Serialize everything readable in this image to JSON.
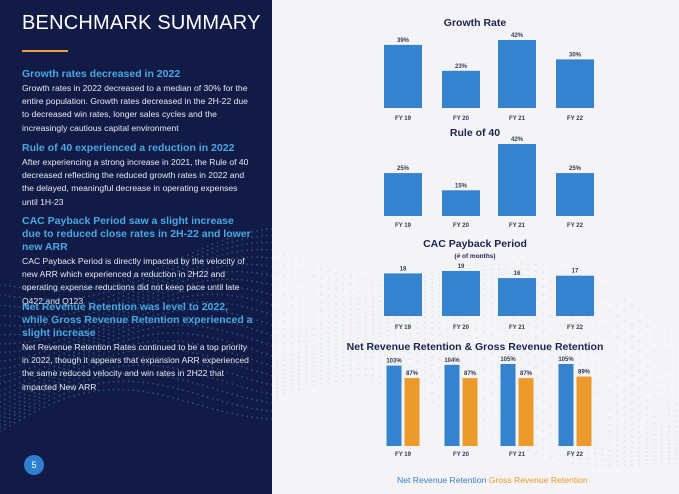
{
  "page": {
    "title": "BENCHMARK SUMMARY",
    "page_number": "5",
    "sections": [
      {
        "heading": "Growth rates decreased in 2022",
        "body": "Growth rates in 2022 decreased to a median of 30% for the entire population. Growth rates decreased in the 2H-22 due to decreased win rates, longer sales cycles and the increasingly cautious capital environment"
      },
      {
        "heading": "Rule of 40 experienced a reduction in 2022",
        "body": "After experiencing a strong increase in 2021, the Rule of 40 decreased reflecting the reduced growth rates in 2022 and the delayed, meaningful decrease in operating expenses until 1H-23"
      },
      {
        "heading": "CAC Payback Period saw a slight increase due to reduced close rates in 2H-22 and lower new ARR",
        "body": "CAC Payback Period is directly impacted by the velocity of new ARR which experienced a reduction in 2H22 and operating expense reductions did not keep pace until late Q422 and Q123"
      },
      {
        "heading": "Net Revenue Retention was level to 2022, while Gross Revenue Retention experienced a slight increase",
        "body": "Net Revenue Retention Rates continued to be a top priority in 2022, though it appears that expansion ARR experienced the same reduced velocity and win rates in 2H22 that impacted New ARR"
      }
    ]
  },
  "colors": {
    "left_bg": "#111b45",
    "accent_blue": "#3582cf",
    "accent_orange": "#ec9a2b",
    "heading_blue": "#49a8e4",
    "title_rule": "#e9a23b"
  },
  "chart_data": [
    {
      "type": "bar",
      "title": "Growth Rate",
      "subtitle": "",
      "categories": [
        "FY 19",
        "FY 20",
        "FY 21",
        "FY 22"
      ],
      "series": [
        {
          "values": [
            39,
            23,
            42,
            30
          ],
          "labels": [
            "39%",
            "23%",
            "42%",
            "30%"
          ]
        }
      ],
      "ylim": [
        0,
        42
      ]
    },
    {
      "type": "bar",
      "title": "Rule of 40",
      "subtitle": "",
      "categories": [
        "FY 19",
        "FY 20",
        "FY 21",
        "FY 22"
      ],
      "series": [
        {
          "values": [
            25,
            15,
            42,
            25
          ],
          "labels": [
            "25%",
            "15%",
            "42%",
            "25%"
          ]
        }
      ],
      "ylim": [
        0,
        42
      ]
    },
    {
      "type": "bar",
      "title": "CAC Payback Period",
      "subtitle": "(# of months)",
      "categories": [
        "FY 19",
        "FY 20",
        "FY 21",
        "FY 22"
      ],
      "series": [
        {
          "values": [
            18,
            19,
            16,
            17
          ],
          "labels": [
            "18",
            "19",
            "16",
            "17"
          ]
        }
      ],
      "ylim": [
        0,
        19
      ]
    },
    {
      "type": "bar",
      "title": "Net Revenue Retention & Gross Revenue Retention",
      "subtitle": "",
      "categories": [
        "FY 19",
        "FY 20",
        "FY 21",
        "FY 22"
      ],
      "series": [
        {
          "name": "Net Revenue Retention",
          "values": [
            103,
            104,
            105,
            105
          ],
          "labels": [
            "103%",
            "104%",
            "105%",
            "105%"
          ]
        },
        {
          "name": "Gross Revenue Retention",
          "values": [
            87,
            87,
            87,
            89
          ],
          "labels": [
            "87%",
            "87%",
            "87%",
            "89%"
          ]
        }
      ],
      "ylim": [
        0,
        105
      ],
      "legend": "bottom"
    }
  ]
}
